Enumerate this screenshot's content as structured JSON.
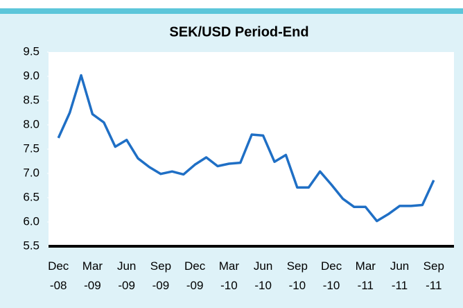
{
  "chart_data": {
    "type": "line",
    "title": "SEK/USD Period-End",
    "categories": [
      "Dec -08",
      null,
      null,
      "Mar -09",
      null,
      null,
      "Jun -09",
      null,
      null,
      "Sep -09",
      null,
      null,
      "Dec -09",
      null,
      null,
      "Mar -10",
      null,
      null,
      "Jun -10",
      null,
      null,
      "Sep -10",
      null,
      null,
      "Dec -10",
      null,
      null,
      "Mar -11",
      null,
      null,
      "Jun -11",
      null,
      null,
      "Sep -11"
    ],
    "series": [
      {
        "name": "SEK/USD",
        "color": "#1f6fc5",
        "values": [
          7.73,
          8.25,
          9.02,
          8.22,
          8.05,
          7.55,
          7.69,
          7.31,
          7.13,
          6.99,
          7.04,
          6.98,
          7.18,
          7.33,
          7.15,
          7.2,
          7.22,
          7.8,
          7.78,
          7.24,
          7.38,
          6.71,
          6.71,
          7.04,
          6.77,
          6.48,
          6.31,
          6.31,
          6.02,
          6.16,
          6.33,
          6.33,
          6.35,
          6.86
        ]
      }
    ],
    "ylim": [
      5.5,
      9.5
    ],
    "yticks": [
      5.5,
      {
        "value": 6,
        "label": "6.0"
      },
      6.5,
      {
        "value": 7,
        "label": "7.0"
      },
      7.5,
      {
        "value": 8,
        "label": "8.0"
      },
      8.5,
      {
        "value": 9,
        "label": "9.0"
      },
      9.5
    ],
    "grid": false
  }
}
